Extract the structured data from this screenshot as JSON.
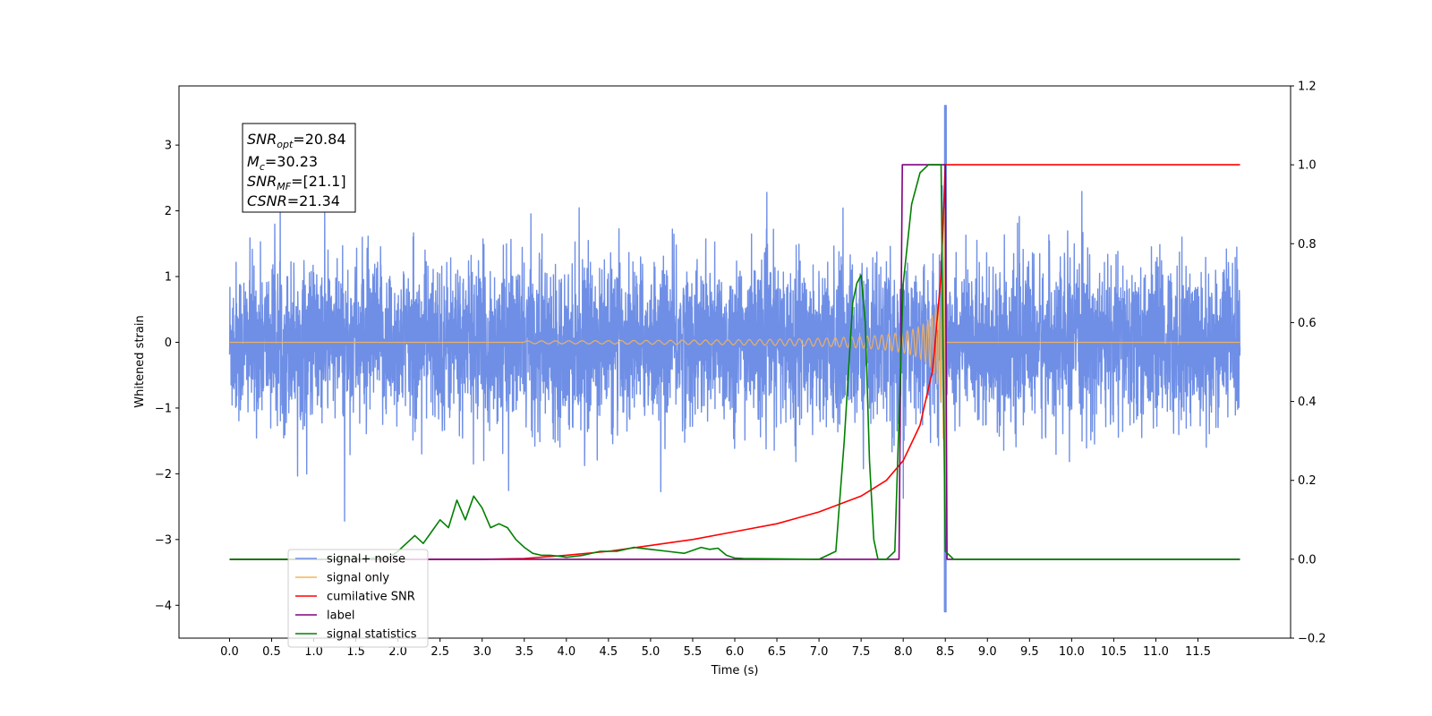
{
  "chart_data": {
    "type": "line",
    "xlabel": "Time (s)",
    "ylabel": "Whitened strain",
    "xlim": [
      -0.6,
      12.6
    ],
    "ylim": [
      -4.5,
      3.9
    ],
    "ylim_right": [
      -0.2,
      1.2
    ],
    "x_ticks": [
      "0.0",
      "0.5",
      "1.0",
      "1.5",
      "2.0",
      "2.5",
      "3.0",
      "3.5",
      "4.0",
      "4.5",
      "5.0",
      "5.5",
      "6.0",
      "6.5",
      "7.0",
      "7.5",
      "8.0",
      "8.5",
      "9.0",
      "9.5",
      "10.0",
      "10.5",
      "11.0",
      "11.5"
    ],
    "y_ticks": [
      "3",
      "2",
      "1",
      "0",
      "−1",
      "−2",
      "−3",
      "−4"
    ],
    "y_ticks_right": [
      "1.2",
      "1.0",
      "0.8",
      "0.6",
      "0.4",
      "0.2",
      "0.0",
      "−0.2"
    ],
    "grid": false,
    "legend_position": "lower-left",
    "annotation": {
      "snr_opt": "SNR",
      "snr_opt_sub": "opt",
      "snr_opt_value": "=20.84",
      "mc": "M",
      "mc_sub": "c",
      "mc_value": "=30.23",
      "snr_mf": "SNR",
      "snr_mf_sub": "MF",
      "snr_mf_value": "=[21.1]",
      "csnr": "CSNR",
      "csnr_value": "=21.34"
    },
    "series": [
      {
        "name": "signal+ noise",
        "color": "#6f8fe6",
        "axis": "left",
        "description_style": "noisy",
        "x_range": [
          0.0,
          12.0
        ],
        "std": 0.6,
        "spike_x": 8.5,
        "spike_max": 3.6,
        "spike_min": -4.1
      },
      {
        "name": "signal only",
        "color": "#f5b35a",
        "axis": "left",
        "x_range": [
          0.0,
          12.0
        ],
        "chirp_start": 3.5,
        "merger_x": 8.5,
        "peak_amplitude": 3.0
      },
      {
        "name": "cumilative SNR",
        "color": "#ff0000",
        "axis": "right",
        "x": [
          0.0,
          1.0,
          2.0,
          3.0,
          3.5,
          4.0,
          4.5,
          5.0,
          5.5,
          6.0,
          6.5,
          7.0,
          7.5,
          7.8,
          8.0,
          8.2,
          8.35,
          8.45,
          8.5,
          9.0,
          10.0,
          11.0,
          12.0
        ],
        "y": [
          0.0,
          0.0,
          0.0,
          0.0,
          0.002,
          0.01,
          0.02,
          0.035,
          0.05,
          0.07,
          0.09,
          0.12,
          0.16,
          0.2,
          0.25,
          0.34,
          0.48,
          0.72,
          1.0,
          1.0,
          1.0,
          1.0,
          1.0
        ]
      },
      {
        "name": "label",
        "color": "#800080",
        "axis": "right",
        "x": [
          0.0,
          7.95,
          7.99,
          8.5,
          8.52,
          12.0
        ],
        "y": [
          0.0,
          0.0,
          1.0,
          1.0,
          0.0,
          0.0
        ]
      },
      {
        "name": "signal statistics",
        "color": "#008000",
        "axis": "right",
        "x": [
          0.0,
          1.5,
          1.9,
          2.0,
          2.1,
          2.2,
          2.3,
          2.4,
          2.5,
          2.6,
          2.7,
          2.8,
          2.9,
          3.0,
          3.1,
          3.2,
          3.3,
          3.4,
          3.5,
          3.6,
          3.7,
          3.8,
          3.9,
          4.0,
          4.2,
          4.4,
          4.6,
          4.8,
          5.0,
          5.2,
          5.4,
          5.6,
          5.7,
          5.8,
          5.9,
          6.0,
          6.1,
          6.5,
          7.0,
          7.2,
          7.3,
          7.4,
          7.45,
          7.5,
          7.55,
          7.6,
          7.65,
          7.7,
          7.8,
          7.9,
          8.0,
          8.1,
          8.2,
          8.3,
          8.45,
          8.5,
          8.55,
          8.6,
          12.0
        ],
        "y": [
          0.0,
          0.0,
          0.005,
          0.02,
          0.04,
          0.06,
          0.04,
          0.07,
          0.1,
          0.08,
          0.15,
          0.1,
          0.16,
          0.13,
          0.08,
          0.09,
          0.08,
          0.05,
          0.03,
          0.015,
          0.01,
          0.01,
          0.008,
          0.005,
          0.01,
          0.02,
          0.02,
          0.03,
          0.025,
          0.02,
          0.015,
          0.03,
          0.025,
          0.028,
          0.01,
          0.003,
          0.002,
          0.001,
          0.0,
          0.02,
          0.3,
          0.65,
          0.7,
          0.72,
          0.6,
          0.25,
          0.05,
          0.0,
          0.0,
          0.02,
          0.7,
          0.9,
          0.98,
          1.0,
          1.0,
          0.02,
          0.01,
          0.0,
          0.0
        ]
      }
    ]
  }
}
